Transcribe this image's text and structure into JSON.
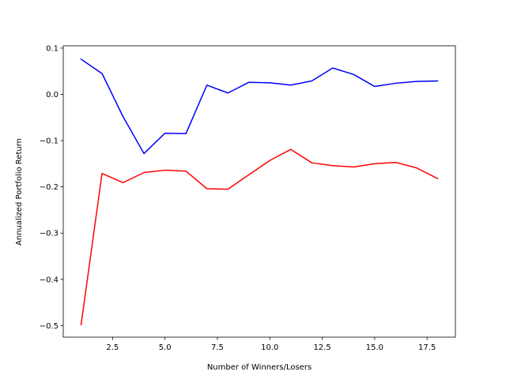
{
  "chart_data": {
    "type": "line",
    "title": "",
    "xlabel": "Number of Winners/Losers",
    "ylabel": "Annualized Portfolio Return",
    "xlim": [
      0.15,
      18.85
    ],
    "ylim": [
      -0.525,
      0.105
    ],
    "xticks": [
      2.5,
      5.0,
      7.5,
      10.0,
      12.5,
      15.0,
      17.5
    ],
    "xtick_labels": [
      "2.5",
      "5.0",
      "7.5",
      "10.0",
      "12.5",
      "15.0",
      "17.5"
    ],
    "yticks": [
      0.1,
      0.0,
      -0.1,
      -0.2,
      -0.3,
      -0.4,
      -0.5
    ],
    "ytick_labels": [
      "0.1",
      "0.0",
      "−0.1",
      "−0.2",
      "−0.3",
      "−0.4",
      "−0.5"
    ],
    "grid": false,
    "legend": "none",
    "x": [
      1,
      2,
      3,
      4,
      5,
      6,
      7,
      8,
      9,
      10,
      11,
      12,
      13,
      14,
      15,
      16,
      17,
      18
    ],
    "series": [
      {
        "color": "#0000ff",
        "values": [
          0.076,
          0.045,
          -0.048,
          -0.128,
          -0.084,
          -0.085,
          0.02,
          0.003,
          0.026,
          0.025,
          0.02,
          0.029,
          0.057,
          0.043,
          0.017,
          0.024,
          0.028,
          0.029
        ]
      },
      {
        "color": "#ff0000",
        "values": [
          -0.498,
          -0.171,
          -0.191,
          -0.169,
          -0.164,
          -0.166,
          -0.204,
          -0.205,
          -0.174,
          -0.143,
          -0.119,
          -0.148,
          -0.154,
          -0.157,
          -0.15,
          -0.147,
          -0.159,
          -0.182
        ]
      }
    ]
  }
}
